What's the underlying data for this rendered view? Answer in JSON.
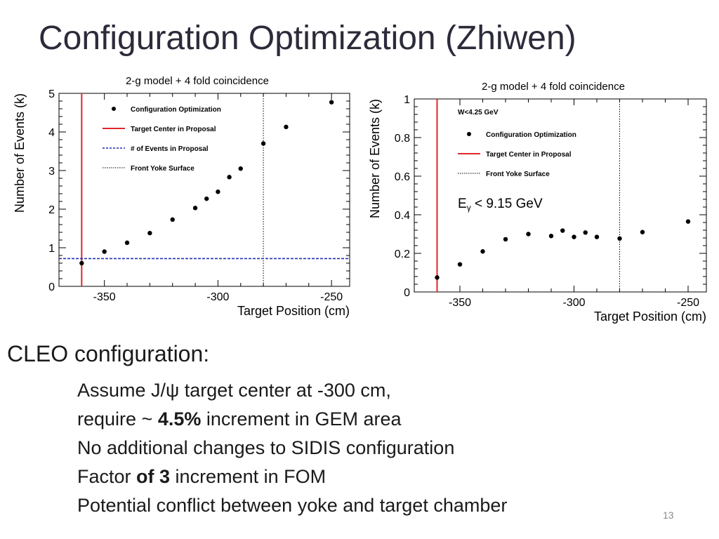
{
  "slide": {
    "title": "Configuration Optimization (Zhiwen)",
    "page_number": "13"
  },
  "body": {
    "heading": "CLEO configuration:",
    "line1": "Assume J/ψ target center at -300 cm,",
    "line2_pre": "require ~ ",
    "line2_bold": "4.5%",
    "line2_post": " increment in GEM area",
    "line3": "No additional changes to SIDIS configuration",
    "line4_pre": "Factor ",
    "line4_bold": "of 3",
    "line4_post": " increment in FOM",
    "line5": "Potential conflict between yoke and target chamber"
  },
  "colors": {
    "marker": "#000000",
    "target_center_line": "#e0262b",
    "events_in_proposal_line": "#1f2fb3",
    "front_yoke_line": "#000000"
  },
  "chart_data": [
    {
      "type": "scatter",
      "title": "2-g model + 4 fold coincidence",
      "xlabel": "Target Position (cm)",
      "ylabel": "Number of Events (k)",
      "xlim": [
        -370,
        -242
      ],
      "ylim": [
        0,
        5
      ],
      "x_ticks": [
        -350,
        -300,
        -250
      ],
      "x_tick_labels": [
        "-350",
        "-300",
        "-250"
      ],
      "y_ticks": [
        0,
        1,
        2,
        3,
        4,
        5
      ],
      "y_tick_labels": [
        "0",
        "1",
        "2",
        "3",
        "4",
        "5"
      ],
      "grid": false,
      "legend_position": "top-left",
      "legend": [
        {
          "label": "Configuration Optimization",
          "style": "marker"
        },
        {
          "label": "Target Center in Proposal",
          "style": "red-solid"
        },
        {
          "label": "# of Events in Proposal",
          "style": "blue-dashed"
        },
        {
          "label": "Front Yoke Surface",
          "style": "black-dotted"
        }
      ],
      "reference_lines": {
        "target_center_x": -360,
        "front_yoke_x": -280,
        "events_in_proposal_y": 0.72
      },
      "series": [
        {
          "name": "Configuration Optimization",
          "x": [
            -360,
            -350,
            -340,
            -330,
            -320,
            -310,
            -305,
            -300,
            -295,
            -290,
            -280,
            -270,
            -250
          ],
          "y": [
            0.6,
            0.9,
            1.13,
            1.38,
            1.73,
            2.03,
            2.27,
            2.45,
            2.83,
            3.05,
            3.7,
            4.13,
            4.77
          ]
        }
      ]
    },
    {
      "type": "scatter",
      "title": "2-g model + 4 fold coincidence",
      "xlabel": "Target Position (cm)",
      "ylabel": "Number of Events (k)",
      "xlim": [
        -370,
        -242
      ],
      "ylim": [
        0,
        1
      ],
      "x_ticks": [
        -350,
        -300,
        -250
      ],
      "x_tick_labels": [
        "-350",
        "-300",
        "-250"
      ],
      "y_ticks": [
        0,
        0.2,
        0.4,
        0.6,
        0.8,
        1
      ],
      "y_tick_labels": [
        "0",
        "0.2",
        "0.4",
        "0.6",
        "0.8",
        "1"
      ],
      "grid": false,
      "legend_position": "top-left",
      "legend_header": "W<4.25 GeV",
      "legend": [
        {
          "label": "Configuration Optimization",
          "style": "marker"
        },
        {
          "label": "Target Center in Proposal",
          "style": "red-solid"
        },
        {
          "label": "Front Yoke Surface",
          "style": "black-dotted"
        }
      ],
      "annotation": {
        "text_main": "E",
        "text_sub": "γ",
        "text_rest": " < 9.15 GeV"
      },
      "reference_lines": {
        "target_center_x": -360,
        "front_yoke_x": -280
      },
      "series": [
        {
          "name": "Configuration Optimization",
          "x": [
            -360,
            -350,
            -340,
            -330,
            -320,
            -310,
            -305,
            -300,
            -295,
            -290,
            -280,
            -270,
            -250
          ],
          "y": [
            0.075,
            0.143,
            0.21,
            0.273,
            0.3,
            0.29,
            0.318,
            0.285,
            0.308,
            0.285,
            0.277,
            0.31,
            0.365
          ]
        }
      ]
    }
  ]
}
